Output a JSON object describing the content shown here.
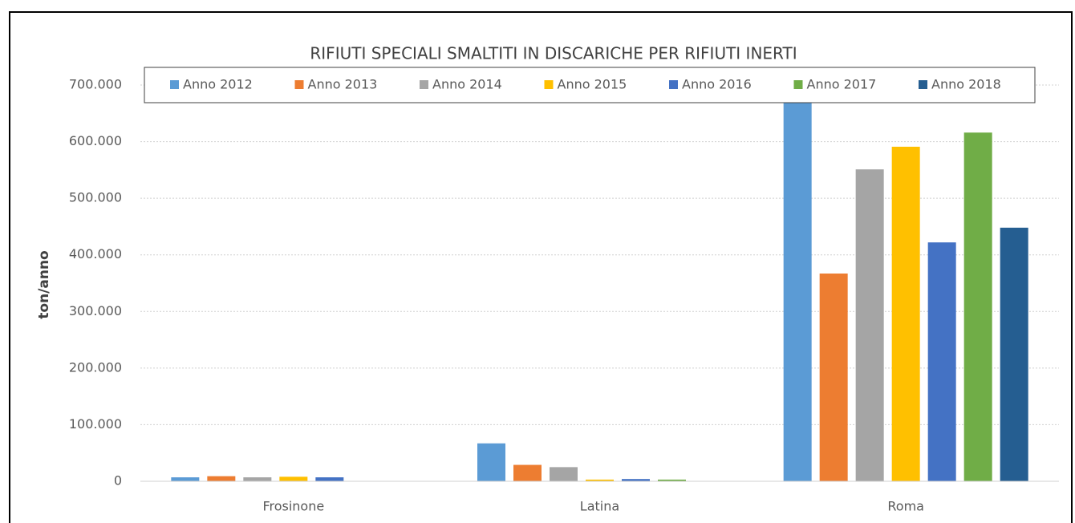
{
  "chart_data": {
    "type": "bar",
    "title": "RIFIUTI SPECIALI SMALTITI IN DISCARICHE PER RIFIUTI INERTI",
    "y_label": "ton/anno",
    "categories": [
      "Frosinone",
      "Latina",
      "Roma"
    ],
    "series": [
      {
        "name": "Anno 2012",
        "color": "#5b9bd5",
        "values": [
          7000,
          67000,
          677000
        ]
      },
      {
        "name": "Anno 2013",
        "color": "#ed7d31",
        "values": [
          9000,
          29000,
          367000
        ]
      },
      {
        "name": "Anno 2014",
        "color": "#a5a5a5",
        "values": [
          7000,
          25000,
          551000
        ]
      },
      {
        "name": "Anno 2015",
        "color": "#ffc000",
        "values": [
          8000,
          3000,
          591000
        ]
      },
      {
        "name": "Anno 2016",
        "color": "#4472c4",
        "values": [
          7000,
          4000,
          422000
        ]
      },
      {
        "name": "Anno 2017",
        "color": "#70ad47",
        "values": [
          null,
          3000,
          616000
        ]
      },
      {
        "name": "Anno 2018",
        "color": "#255e91",
        "values": [
          null,
          null,
          448000
        ]
      }
    ],
    "ylim": [
      0,
      700000
    ],
    "yticks": [
      0,
      {
        "value": 100000,
        "label": "100.000"
      },
      {
        "value": 200000,
        "label": "200.000"
      },
      {
        "value": 300000,
        "label": "300.000"
      },
      {
        "value": 400000,
        "label": "400.000"
      },
      {
        "value": 500000,
        "label": "500.000"
      },
      {
        "value": 600000,
        "label": "600.000"
      },
      {
        "value": 700000,
        "label": "700.000"
      }
    ],
    "grid": true,
    "legend": "top"
  }
}
